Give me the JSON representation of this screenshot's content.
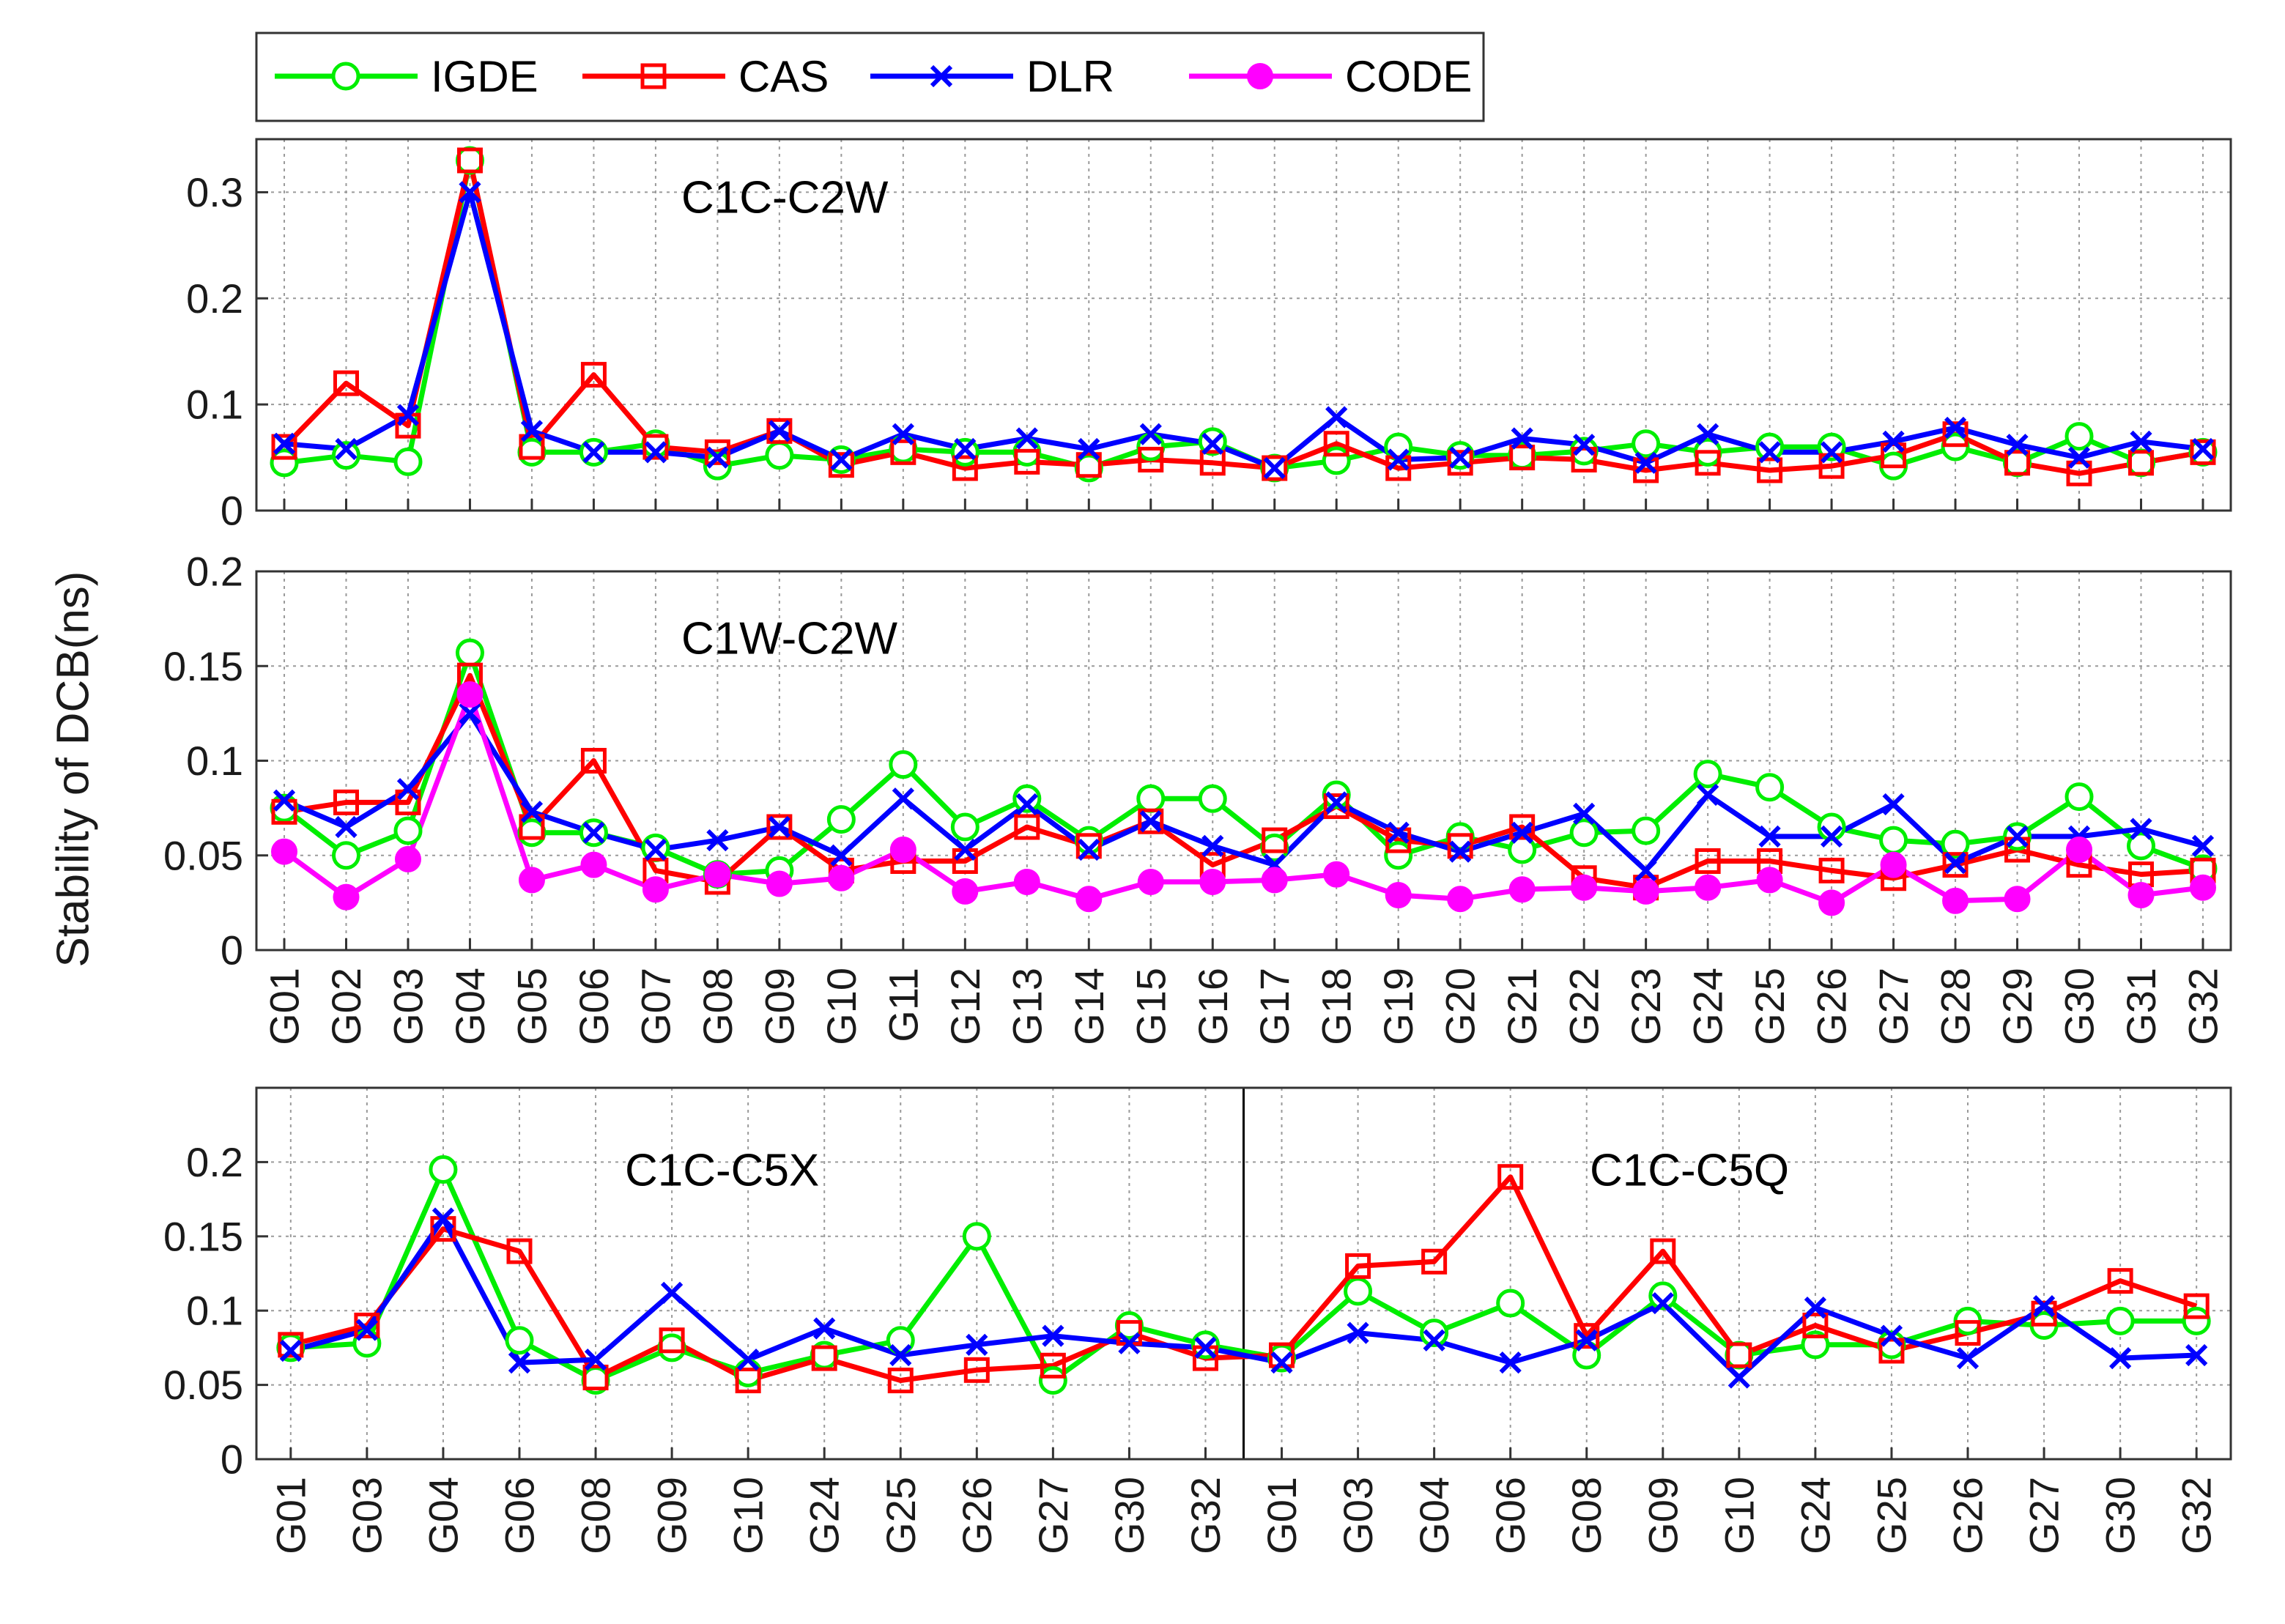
{
  "chart_data": {
    "type": "line",
    "ylabel": "Stability of DCB(ns)",
    "legend": [
      {
        "name": "IGDE",
        "color": "#00ee00",
        "marker": "circle"
      },
      {
        "name": "CAS",
        "color": "#ff0000",
        "marker": "square"
      },
      {
        "name": "DLR",
        "color": "#0000ff",
        "marker": "x"
      },
      {
        "name": "CODE",
        "color": "#ff00ff",
        "marker": "dot"
      }
    ],
    "panels": [
      {
        "title": "C1C-C2W",
        "ylim": [
          0,
          0.35
        ],
        "yticks": [
          0,
          0.1,
          0.2,
          0.3
        ],
        "ytick_labels": [
          "0",
          "0.1",
          "0.2",
          "0.3"
        ],
        "categories": [
          "G01",
          "G02",
          "G03",
          "G04",
          "G05",
          "G06",
          "G07",
          "G08",
          "G09",
          "G10",
          "G11",
          "G12",
          "G13",
          "G14",
          "G15",
          "G16",
          "G17",
          "G18",
          "G19",
          "G20",
          "G21",
          "G22",
          "G23",
          "G24",
          "G25",
          "G26",
          "G27",
          "G28",
          "G29",
          "G30",
          "G31",
          "G32"
        ],
        "show_xticklabels": false,
        "series": [
          {
            "name": "IGDE",
            "values": [
              0.045,
              0.052,
              0.046,
              0.33,
              0.055,
              0.055,
              0.063,
              0.042,
              0.052,
              0.048,
              0.058,
              0.055,
              0.055,
              0.04,
              0.06,
              0.065,
              0.04,
              0.047,
              0.06,
              0.052,
              0.052,
              0.056,
              0.063,
              0.055,
              0.06,
              0.06,
              0.042,
              0.06,
              0.045,
              0.07,
              0.045,
              0.055
            ]
          },
          {
            "name": "CAS",
            "values": [
              0.06,
              0.12,
              0.08,
              0.33,
              0.06,
              0.128,
              0.06,
              0.055,
              0.075,
              0.043,
              0.055,
              0.04,
              0.046,
              0.043,
              0.048,
              0.045,
              0.04,
              0.063,
              0.04,
              0.045,
              0.05,
              0.048,
              0.038,
              0.045,
              0.038,
              0.042,
              0.052,
              0.072,
              0.045,
              0.035,
              0.045,
              0.055
            ]
          },
          {
            "name": "DLR",
            "values": [
              0.063,
              0.058,
              0.09,
              0.3,
              0.075,
              0.055,
              0.055,
              0.05,
              0.075,
              0.048,
              0.072,
              0.058,
              0.068,
              0.058,
              0.072,
              0.063,
              0.04,
              0.088,
              0.048,
              0.05,
              0.068,
              0.062,
              0.045,
              0.072,
              0.055,
              0.055,
              0.065,
              0.078,
              0.062,
              0.05,
              0.065,
              0.058
            ]
          }
        ]
      },
      {
        "title": "C1W-C2W",
        "ylim": [
          0,
          0.2
        ],
        "yticks": [
          0,
          0.05,
          0.1,
          0.15,
          0.2
        ],
        "ytick_labels": [
          "0",
          "0.05",
          "0.1",
          "0.15",
          "0.2"
        ],
        "categories": [
          "G01",
          "G02",
          "G03",
          "G04",
          "G05",
          "G06",
          "G07",
          "G08",
          "G09",
          "G10",
          "G11",
          "G12",
          "G13",
          "G14",
          "G15",
          "G16",
          "G17",
          "G18",
          "G19",
          "G20",
          "G21",
          "G22",
          "G23",
          "G24",
          "G25",
          "G26",
          "G27",
          "G28",
          "G29",
          "G30",
          "G31",
          "G32"
        ],
        "show_xticklabels": true,
        "series": [
          {
            "name": "IGDE",
            "values": [
              0.075,
              0.05,
              0.063,
              0.157,
              0.062,
              0.062,
              0.054,
              0.04,
              0.042,
              0.069,
              0.098,
              0.065,
              0.08,
              0.058,
              0.08,
              0.08,
              0.054,
              0.082,
              0.05,
              0.06,
              0.053,
              0.062,
              0.063,
              0.093,
              0.086,
              0.065,
              0.058,
              0.056,
              0.06,
              0.081,
              0.055,
              0.043
            ]
          },
          {
            "name": "CAS",
            "values": [
              0.073,
              0.078,
              0.078,
              0.145,
              0.065,
              0.1,
              0.042,
              0.036,
              0.065,
              0.042,
              0.047,
              0.047,
              0.065,
              0.055,
              0.068,
              0.045,
              0.058,
              0.076,
              0.058,
              0.055,
              0.065,
              0.038,
              0.033,
              0.047,
              0.047,
              0.042,
              0.038,
              0.045,
              0.053,
              0.045,
              0.04,
              0.042
            ]
          },
          {
            "name": "DLR",
            "values": [
              0.079,
              0.065,
              0.085,
              0.125,
              0.073,
              0.062,
              0.053,
              0.058,
              0.065,
              0.05,
              0.08,
              0.053,
              0.077,
              0.053,
              0.068,
              0.055,
              0.045,
              0.078,
              0.062,
              0.052,
              0.062,
              0.072,
              0.042,
              0.082,
              0.06,
              0.06,
              0.077,
              0.046,
              0.06,
              0.06,
              0.064,
              0.055
            ]
          },
          {
            "name": "CODE",
            "values": [
              0.052,
              0.028,
              0.048,
              0.135,
              0.037,
              0.045,
              0.032,
              0.04,
              0.035,
              0.038,
              0.053,
              0.031,
              0.036,
              0.027,
              0.036,
              0.036,
              0.037,
              0.04,
              0.029,
              0.027,
              0.032,
              0.033,
              0.031,
              0.033,
              0.037,
              0.025,
              0.045,
              0.026,
              0.027,
              0.053,
              0.029,
              0.033
            ]
          }
        ]
      },
      {
        "title_left": "C1C-C5X",
        "title_right": "C1C-C5Q",
        "ylim": [
          0,
          0.25
        ],
        "yticks": [
          0,
          0.05,
          0.1,
          0.15,
          0.2
        ],
        "ytick_labels": [
          "0",
          "0.05",
          "0.1",
          "0.15",
          "0.2"
        ],
        "categories": [
          "G01",
          "G03",
          "G04",
          "G06",
          "G08",
          "G09",
          "G10",
          "G24",
          "G25",
          "G26",
          "G27",
          "G30",
          "G32",
          "G01",
          "G03",
          "G04",
          "G06",
          "G08",
          "G09",
          "G10",
          "G24",
          "G25",
          "G26",
          "G27",
          "G30",
          "G32"
        ],
        "divider_after_index": 12,
        "show_xticklabels": true,
        "series": [
          {
            "name": "IGDE",
            "values": [
              0.075,
              0.078,
              0.195,
              0.08,
              0.053,
              0.075,
              0.058,
              0.07,
              0.08,
              0.15,
              0.053,
              0.09,
              0.077,
              0.068,
              0.113,
              0.085,
              0.105,
              0.07,
              0.11,
              0.07,
              0.077,
              0.077,
              0.093,
              0.09,
              0.093,
              0.093
            ]
          },
          {
            "name": "CAS",
            "values": [
              0.077,
              0.09,
              0.155,
              0.14,
              0.055,
              0.08,
              0.053,
              0.068,
              0.053,
              0.06,
              0.063,
              0.085,
              0.068,
              0.07,
              0.13,
              0.133,
              0.19,
              0.083,
              0.14,
              0.07,
              0.09,
              0.073,
              0.085,
              0.098,
              0.12,
              0.103
            ]
          },
          {
            "name": "DLR",
            "values": [
              0.073,
              0.087,
              0.162,
              0.065,
              0.067,
              0.112,
              0.067,
              0.088,
              0.07,
              0.077,
              0.083,
              0.078,
              0.075,
              0.065,
              0.085,
              0.08,
              0.065,
              0.08,
              0.105,
              0.055,
              0.102,
              0.083,
              0.068,
              0.103,
              0.068,
              0.07
            ]
          }
        ]
      }
    ]
  }
}
